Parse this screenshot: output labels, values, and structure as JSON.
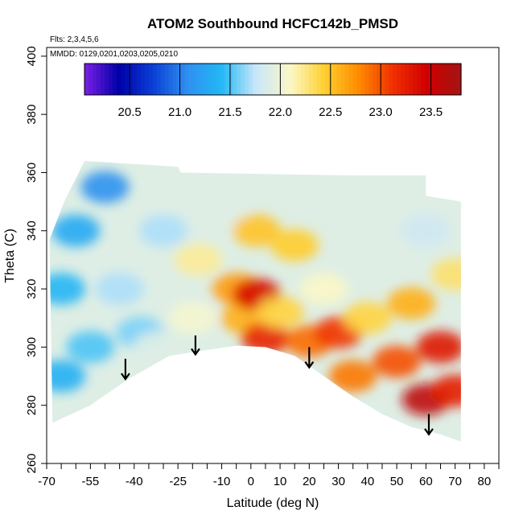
{
  "chart_data": {
    "type": "heatmap",
    "title": "ATOM2 Southbound HCFC142b_PMSD",
    "flights_note": "Flts: 2,3,4,5,6",
    "dates_note": "MMDD: 0129,0201,0203,0205,0210",
    "xlabel": "Latitude (deg N)",
    "ylabel": "Theta (C)",
    "xlim": [
      -70,
      85
    ],
    "ylim": [
      260,
      403
    ],
    "x_ticks": [
      -70,
      -55,
      -40,
      -25,
      -10,
      0,
      10,
      20,
      30,
      40,
      50,
      60,
      70,
      80
    ],
    "x_minor_ticks": [
      -65,
      -60,
      -50,
      -45,
      -35,
      -30,
      -20,
      -15,
      -5,
      5,
      15,
      25,
      35,
      45,
      55,
      65,
      75,
      85
    ],
    "y_ticks": [
      260,
      280,
      300,
      320,
      340,
      360,
      380,
      400
    ],
    "colorbar": {
      "range": [
        20.05,
        23.8
      ],
      "tick_values": [
        20.5,
        21.0,
        21.5,
        22.0,
        22.5,
        23.0,
        23.5
      ],
      "tick_labels": [
        "20.5",
        "21.0",
        "21.5",
        "22.0",
        "22.5",
        "23.0",
        "23.5"
      ],
      "divisions": [
        20.5,
        21.0,
        21.5,
        22.0,
        22.5,
        23.0,
        23.5
      ],
      "colors": [
        "#7b1fe6",
        "#0000a8",
        "#0a3fd6",
        "#2f8ff0",
        "#22b8f5",
        "#c8e6fa",
        "#fbf8c8",
        "#ffd030",
        "#ff8c00",
        "#f03000",
        "#d00000",
        "#a31515"
      ]
    },
    "surface_bottom": [
      [
        -68,
        274
      ],
      [
        -55,
        280
      ],
      [
        -42,
        289
      ],
      [
        -28,
        297
      ],
      [
        -15,
        299
      ],
      [
        -5,
        300.5
      ],
      [
        5,
        300
      ],
      [
        15,
        297
      ],
      [
        25,
        290
      ],
      [
        35,
        283
      ],
      [
        45,
        277
      ],
      [
        55,
        272.5
      ],
      [
        65,
        270
      ],
      [
        72,
        267.5
      ]
    ],
    "domain_top": [
      [
        -69,
        337
      ],
      [
        -64,
        350
      ],
      [
        -58,
        362
      ],
      [
        -57,
        364
      ],
      [
        -25,
        362
      ],
      [
        -24,
        360
      ],
      [
        35,
        359
      ],
      [
        60,
        359
      ],
      [
        60,
        352
      ],
      [
        72,
        350
      ]
    ],
    "value_field": [
      {
        "lat": -65,
        "theta": 290,
        "value": 21.35
      },
      {
        "lat": -65,
        "theta": 320,
        "value": 21.4
      },
      {
        "lat": -60,
        "theta": 340,
        "value": 21.3
      },
      {
        "lat": -55,
        "theta": 300,
        "value": 21.5
      },
      {
        "lat": -50,
        "theta": 355,
        "value": 21.1
      },
      {
        "lat": -45,
        "theta": 320,
        "value": 21.7
      },
      {
        "lat": -38,
        "theta": 305,
        "value": 21.6
      },
      {
        "lat": -32,
        "theta": 300,
        "value": 21.9
      },
      {
        "lat": -30,
        "theta": 340,
        "value": 21.7
      },
      {
        "lat": -20,
        "theta": 310,
        "value": 22.05
      },
      {
        "lat": -18,
        "theta": 330,
        "value": 22.2
      },
      {
        "lat": -10,
        "theta": 345,
        "value": 21.9
      },
      {
        "lat": -5,
        "theta": 320,
        "value": 22.7
      },
      {
        "lat": -2,
        "theta": 310,
        "value": 22.6
      },
      {
        "lat": 2,
        "theta": 340,
        "value": 22.5
      },
      {
        "lat": 2,
        "theta": 318,
        "value": 23.4
      },
      {
        "lat": 5,
        "theta": 303,
        "value": 23.2
      },
      {
        "lat": 10,
        "theta": 312,
        "value": 22.4
      },
      {
        "lat": 15,
        "theta": 335,
        "value": 22.45
      },
      {
        "lat": 20,
        "theta": 302,
        "value": 22.9
      },
      {
        "lat": 25,
        "theta": 320,
        "value": 22.1
      },
      {
        "lat": 30,
        "theta": 305,
        "value": 23.1
      },
      {
        "lat": 35,
        "theta": 290,
        "value": 22.85
      },
      {
        "lat": 40,
        "theta": 310,
        "value": 22.4
      },
      {
        "lat": 45,
        "theta": 330,
        "value": 21.9
      },
      {
        "lat": 50,
        "theta": 295,
        "value": 23.0
      },
      {
        "lat": 55,
        "theta": 315,
        "value": 22.6
      },
      {
        "lat": 60,
        "theta": 282,
        "value": 23.6
      },
      {
        "lat": 60,
        "theta": 340,
        "value": 21.8
      },
      {
        "lat": 65,
        "theta": 300,
        "value": 23.3
      },
      {
        "lat": 70,
        "theta": 325,
        "value": 22.3
      },
      {
        "lat": 70,
        "theta": 285,
        "value": 23.25
      }
    ],
    "arrows": [
      {
        "lat": -43,
        "theta_top": 296,
        "theta_tip": 289
      },
      {
        "lat": -19,
        "theta_top": 304,
        "theta_tip": 297.5
      },
      {
        "lat": 20,
        "theta_top": 300,
        "theta_tip": 293
      },
      {
        "lat": 61,
        "theta_top": 277,
        "theta_tip": 270
      }
    ]
  }
}
